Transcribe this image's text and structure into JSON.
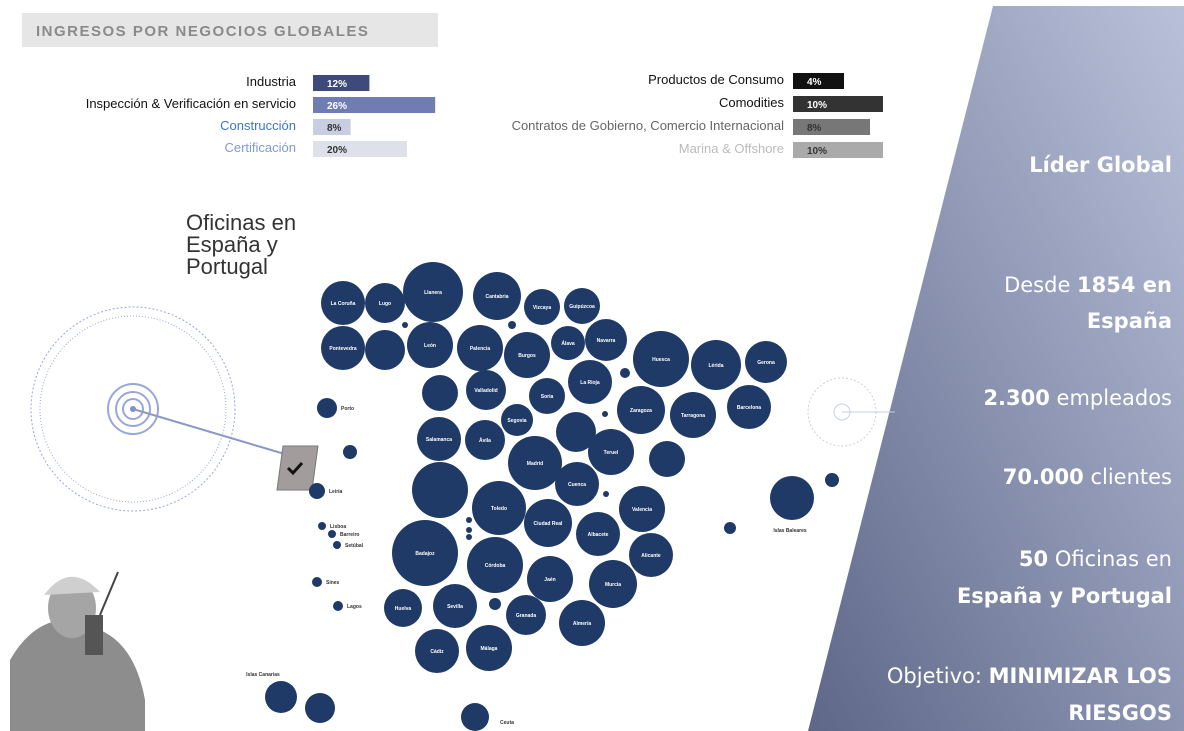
{
  "header": {
    "title": "INGRESOS POR NEGOCIOS GLOBALES"
  },
  "left_bars": [
    {
      "label": "Industria",
      "value": 12,
      "value_label": "12%",
      "color": "#3e4a7c",
      "label_color": "#111111"
    },
    {
      "label": "Inspección & Verificación en servicio",
      "value": 26,
      "value_label": "26%",
      "color": "#6f7db3",
      "label_color": "#111111"
    },
    {
      "label": "Construcción",
      "value": 8,
      "value_label": "8%",
      "color": "#c9cde0",
      "label_color": "#3f74cf"
    },
    {
      "label": "Certificación",
      "value": 20,
      "value_label": "20%",
      "color": "#dfe1ea",
      "label_color": "#7f9ad6"
    }
  ],
  "right_bars": [
    {
      "label": "Productos de Consumo",
      "value": 4,
      "value_label": "4%",
      "color": "#111111",
      "label_color": "#111111"
    },
    {
      "label": "Comodities",
      "value": 10,
      "value_label": "10%",
      "color": "#333333",
      "label_color": "#111111"
    },
    {
      "label": "Contratos de Gobierno, Comercio Internacional",
      "value": 8,
      "value_label": "8%",
      "color": "#777777",
      "label_color": "#666666"
    },
    {
      "label": "Marina & Offshore",
      "value": 10,
      "value_label": "10%",
      "color": "#aaaaaa",
      "label_color": "#bbbbbb"
    }
  ],
  "map": {
    "heading": [
      "Oficinas en",
      "España y",
      "Portugal"
    ],
    "cities": [
      "La Coruña",
      "Lugo",
      "Llanera",
      "Cantabria",
      "Vizcaya",
      "Guipúzcoa",
      "Pontevedra",
      "León",
      "Palencia",
      "Burgos",
      "Álava",
      "Navarra",
      "Huesca",
      "Lérida",
      "Gerona",
      "Valladolid",
      "Soria",
      "La Rioja",
      "Segovia",
      "Zaragoza",
      "Tarragona",
      "Barcelona",
      "Salamanca",
      "Ávila",
      "Madrid",
      "Teruel",
      "Cuenca",
      "Toledo",
      "Ciudad Real",
      "Valencia",
      "Albacete",
      "Badajoz",
      "Córdoba",
      "Alicante",
      "Jaén",
      "Murcia",
      "Huelva",
      "Sevilla",
      "Granada",
      "Almería",
      "Cádiz",
      "Málaga",
      "Porto",
      "Leiria",
      "Lisboa",
      "Barreiro",
      "Setúbal",
      "Sines",
      "Lagos",
      "Islas Canarias",
      "Islas Baleares",
      "Ceuta"
    ]
  },
  "stats": [
    {
      "lines": [
        [
          {
            "text": "Líder Global",
            "bold": true
          }
        ]
      ]
    },
    {
      "lines": [
        [
          {
            "text": "Desde ",
            "bold": false
          },
          {
            "text": "1854 en",
            "bold": true
          }
        ],
        [
          {
            "text": "España",
            "bold": true
          }
        ]
      ]
    },
    {
      "lines": [
        [
          {
            "text": "2.300",
            "bold": true
          },
          {
            "text": " empleados",
            "bold": false
          }
        ]
      ]
    },
    {
      "lines": [
        [
          {
            "text": "70.000",
            "bold": true
          },
          {
            "text": " clientes",
            "bold": false
          }
        ]
      ]
    },
    {
      "lines": [
        [
          {
            "text": "50",
            "bold": true
          },
          {
            "text": " Oficinas en",
            "bold": false
          }
        ],
        [
          {
            "text": "España y Portugal",
            "bold": true
          }
        ]
      ]
    },
    {
      "lines": [
        [
          {
            "text": "Objetivo: ",
            "bold": false
          },
          {
            "text": "MINIMIZAR LOS",
            "bold": true
          }
        ],
        [
          {
            "text": "RIESGOS",
            "bold": true
          }
        ]
      ]
    }
  ]
}
